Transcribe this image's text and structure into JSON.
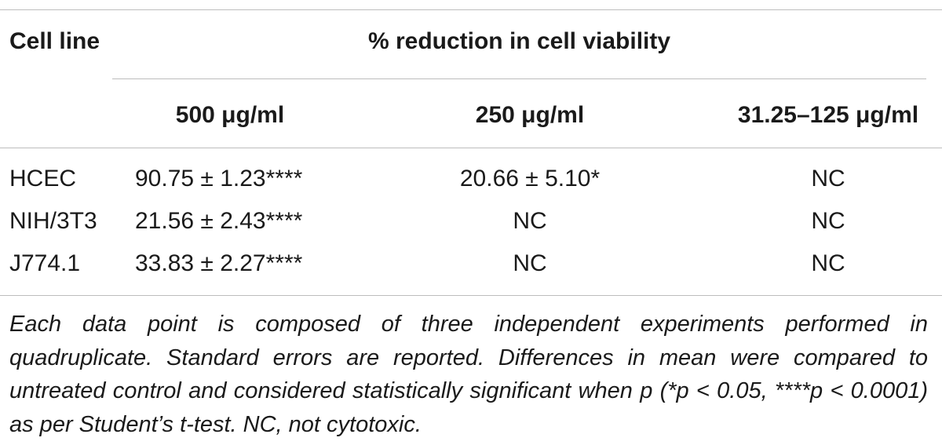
{
  "table": {
    "header": {
      "cell_line": "Cell line",
      "group": "% reduction in cell viability",
      "columns": [
        "500 μg/ml",
        "250 μg/ml",
        "31.25–125 μg/ml"
      ]
    },
    "rows": [
      {
        "cell_line": "HCEC",
        "values": [
          "90.75 ± 1.23****",
          "20.66 ± 5.10*",
          "NC"
        ]
      },
      {
        "cell_line": "NIH/3T3",
        "values": [
          "21.56 ± 2.43****",
          "NC",
          "NC"
        ]
      },
      {
        "cell_line": "J774.1",
        "values": [
          "33.83 ± 2.27****",
          "NC",
          "NC"
        ]
      }
    ]
  },
  "footnote": "Each data point is composed of three independent experiments performed in quadruplicate. Standard errors are reported. Differences in mean were compared to untreated control and considered statistically significant when p (*p < 0.05, ****p < 0.0001) as per Student’s t-test. NC, not cytotoxic."
}
